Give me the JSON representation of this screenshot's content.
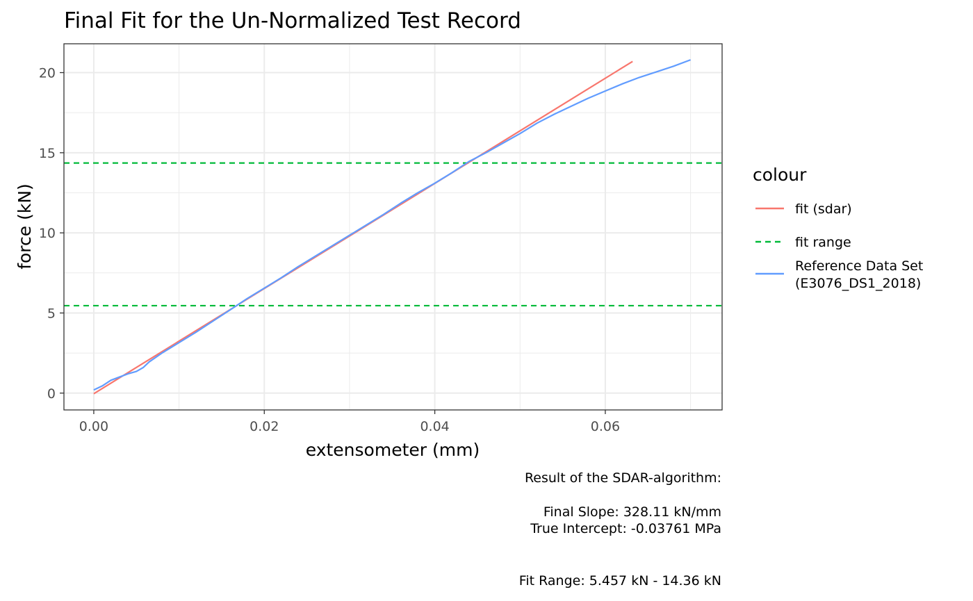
{
  "chart_data": {
    "type": "line",
    "title": "Final Fit for the Un-Normalized Test Record",
    "xlabel": "extensometer (mm)",
    "ylabel": "force (kN)",
    "xlim": [
      -0.0035,
      0.0737
    ],
    "ylim": [
      -1.05,
      21.8
    ],
    "x_ticks": [
      0.0,
      0.02,
      0.04,
      0.06
    ],
    "x_tick_labels": [
      "0.00",
      "0.02",
      "0.04",
      "0.06"
    ],
    "y_ticks": [
      0,
      5,
      10,
      15,
      20
    ],
    "y_tick_labels": [
      "0",
      "5",
      "10",
      "15",
      "20"
    ],
    "grid": true,
    "legend": {
      "title": "colour",
      "position": "right",
      "entries": [
        {
          "label": "fit (sdar)",
          "color": "#F8766D",
          "dash": false
        },
        {
          "label": "fit range",
          "color": "#00BA38",
          "dash": true
        },
        {
          "label": "Reference Data Set",
          "label2": "(E3076_DS1_2018)",
          "color": "#619CFF",
          "dash": false
        }
      ]
    },
    "series": [
      {
        "name": "fit (sdar)",
        "color": "#F8766D",
        "x": [
          0.0,
          0.0632
        ],
        "y": [
          -0.03761,
          20.7
        ]
      },
      {
        "name": "Reference Data Set (E3076_DS1_2018)",
        "color": "#619CFF",
        "x": [
          0.0,
          0.001,
          0.002,
          0.003,
          0.004,
          0.005,
          0.0058,
          0.0065,
          0.008,
          0.01,
          0.012,
          0.014,
          0.016,
          0.018,
          0.02,
          0.022,
          0.024,
          0.026,
          0.028,
          0.03,
          0.032,
          0.034,
          0.036,
          0.038,
          0.04,
          0.042,
          0.044,
          0.046,
          0.048,
          0.05,
          0.052,
          0.054,
          0.056,
          0.058,
          0.06,
          0.062,
          0.064,
          0.066,
          0.068,
          0.07
        ],
        "y": [
          0.2,
          0.45,
          0.8,
          1.0,
          1.2,
          1.35,
          1.6,
          1.95,
          2.5,
          3.15,
          3.8,
          4.5,
          5.2,
          5.9,
          6.55,
          7.2,
          7.9,
          8.55,
          9.2,
          9.85,
          10.5,
          11.15,
          11.85,
          12.5,
          13.1,
          13.75,
          14.45,
          15.0,
          15.6,
          16.2,
          16.85,
          17.4,
          17.9,
          18.4,
          18.85,
          19.3,
          19.7,
          20.05,
          20.4,
          20.8
        ]
      }
    ],
    "fit_range_lines": [
      {
        "y": 5.457,
        "color": "#00BA38"
      },
      {
        "y": 14.36,
        "color": "#00BA38"
      }
    ],
    "caption": {
      "line1": "Result of the SDAR-algorithm:",
      "line2": "Final Slope: 328.11 kN/mm",
      "line3": "True Intercept: -0.03761 MPa",
      "line4": "Fit Range: 5.457 kN - 14.36 kN"
    }
  }
}
